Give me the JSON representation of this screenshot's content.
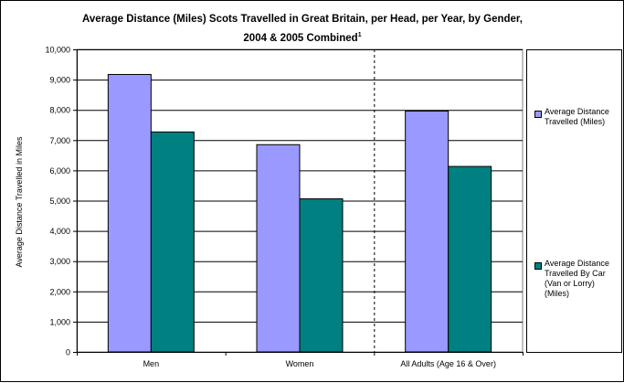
{
  "chart_data": {
    "type": "bar",
    "title": "Average Distance (Miles) Scots Travelled in Great Britain, per Head, per Year, by Gender,",
    "title_line2": "2004 & 2005 Combined",
    "title_superscript": "1",
    "xlabel": "",
    "ylabel": "Average Distance Travelled in Miles",
    "ylim": [
      0,
      10000
    ],
    "yticks": [
      "0",
      "1,000",
      "2,000",
      "3,000",
      "4,000",
      "5,000",
      "6,000",
      "7,000",
      "8,000",
      "9,000",
      "10,000"
    ],
    "categories": [
      "Men",
      "Women",
      "All Adults (Age 16 & Over)"
    ],
    "series": [
      {
        "name": "Average Distance Travelled (Miles)",
        "values": [
          9170,
          6850,
          7960
        ],
        "color": "#9999ff"
      },
      {
        "name": "Average Distance Travelled By Car (Van or Lorry) (Miles)",
        "values": [
          7270,
          5060,
          6130
        ],
        "color": "#008080"
      }
    ],
    "grid": true,
    "legend": "right",
    "separator": "dashed vertical line between Women and All Adults"
  }
}
